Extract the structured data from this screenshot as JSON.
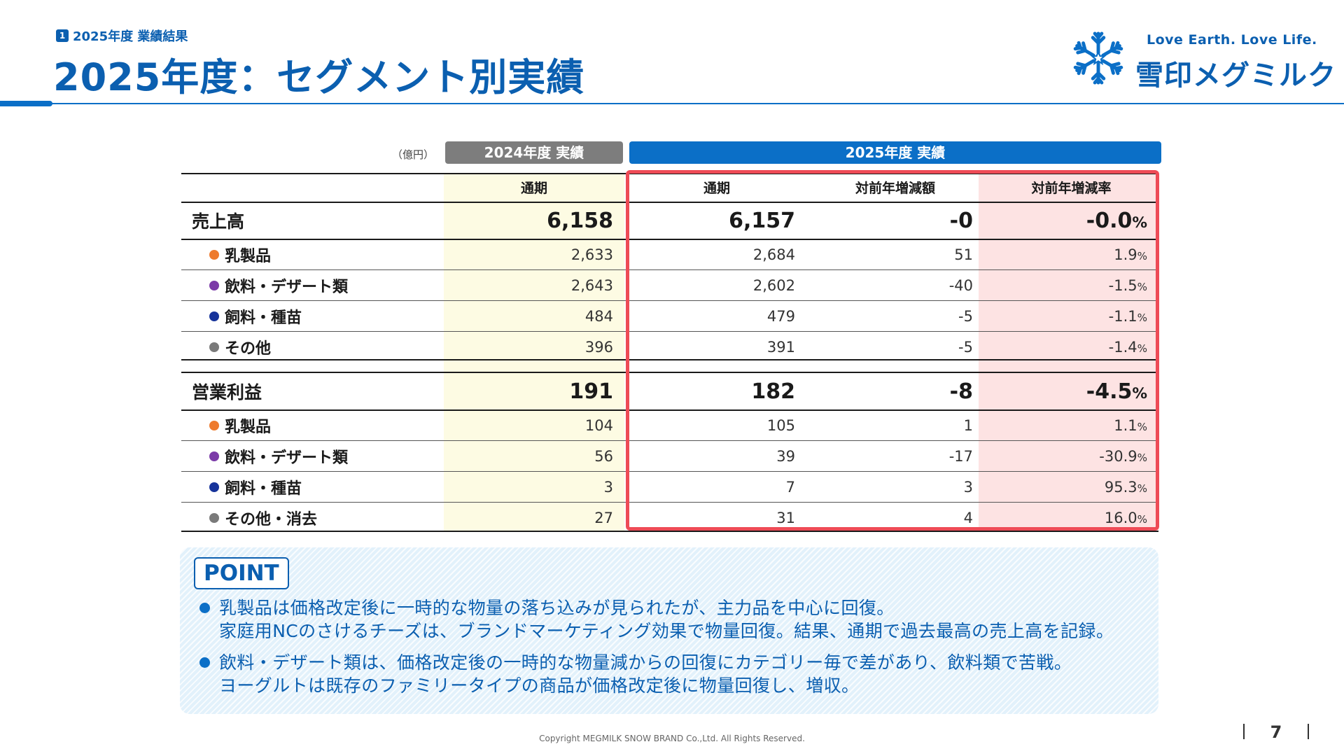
{
  "header": {
    "section_number": "1",
    "section_label": "2025年度 業績結果",
    "title": "2025年度：セグメント別実績",
    "tagline": "Love Earth. Love Life.",
    "brand": "雪印メグミルク"
  },
  "table": {
    "unit": "（億円）",
    "group_2024": "2024年度 実績",
    "group_2025": "2025年度 実績",
    "columns": [
      "通期",
      "通期",
      "対前年増減額",
      "対前年増減率"
    ],
    "pct_suffix": "%",
    "sales": {
      "label": "売上高",
      "values": [
        "6,158",
        "6,157",
        "-0",
        "-0.0"
      ],
      "rows": [
        {
          "label": "乳製品",
          "color": "#ee7a2d",
          "values": [
            "2,633",
            "2,684",
            "51",
            "1.9"
          ]
        },
        {
          "label": "飲料・デザート類",
          "color": "#7b3aa8",
          "values": [
            "2,643",
            "2,602",
            "-40",
            "-1.5"
          ]
        },
        {
          "label": "飼料・種苗",
          "color": "#16339a",
          "values": [
            "484",
            "479",
            "-5",
            "-1.1"
          ]
        },
        {
          "label": "その他",
          "color": "#7a7a7a",
          "values": [
            "396",
            "391",
            "-5",
            "-1.4"
          ]
        }
      ]
    },
    "profit": {
      "label": "営業利益",
      "values": [
        "191",
        "182",
        "-8",
        "-4.5"
      ],
      "rows": [
        {
          "label": "乳製品",
          "color": "#ee7a2d",
          "values": [
            "104",
            "105",
            "1",
            "1.1"
          ]
        },
        {
          "label": "飲料・デザート類",
          "color": "#7b3aa8",
          "values": [
            "56",
            "39",
            "-17",
            "-30.9"
          ]
        },
        {
          "label": "飼料・種苗",
          "color": "#16339a",
          "values": [
            "3",
            "7",
            "3",
            "95.3"
          ]
        },
        {
          "label": "その他・消去",
          "color": "#7a7a7a",
          "values": [
            "27",
            "31",
            "4",
            "16.0"
          ]
        }
      ]
    }
  },
  "point": {
    "label": "POINT",
    "bullets": [
      {
        "line1": "乳製品は価格改定後に一時的な物量の落ち込みが見られたが、主力品を中心に回復。",
        "line2": "家庭用NCのさけるチーズは、ブランドマーケティング効果で物量回復。結果、通期で過去最高の売上高を記録。"
      },
      {
        "line1": "飲料・デザート類は、価格改定後の一時的な物量減からの回復にカテゴリー毎で差があり、飲料類で苦戦。",
        "line2": "ヨーグルトは既存のファミリータイプの商品が価格改定後に物量回復し、増収。"
      }
    ]
  },
  "footer": {
    "copyright": "Copyright  MEGMILK SNOW BRAND Co.,Ltd. All Rights Reserved.",
    "page": "7"
  }
}
